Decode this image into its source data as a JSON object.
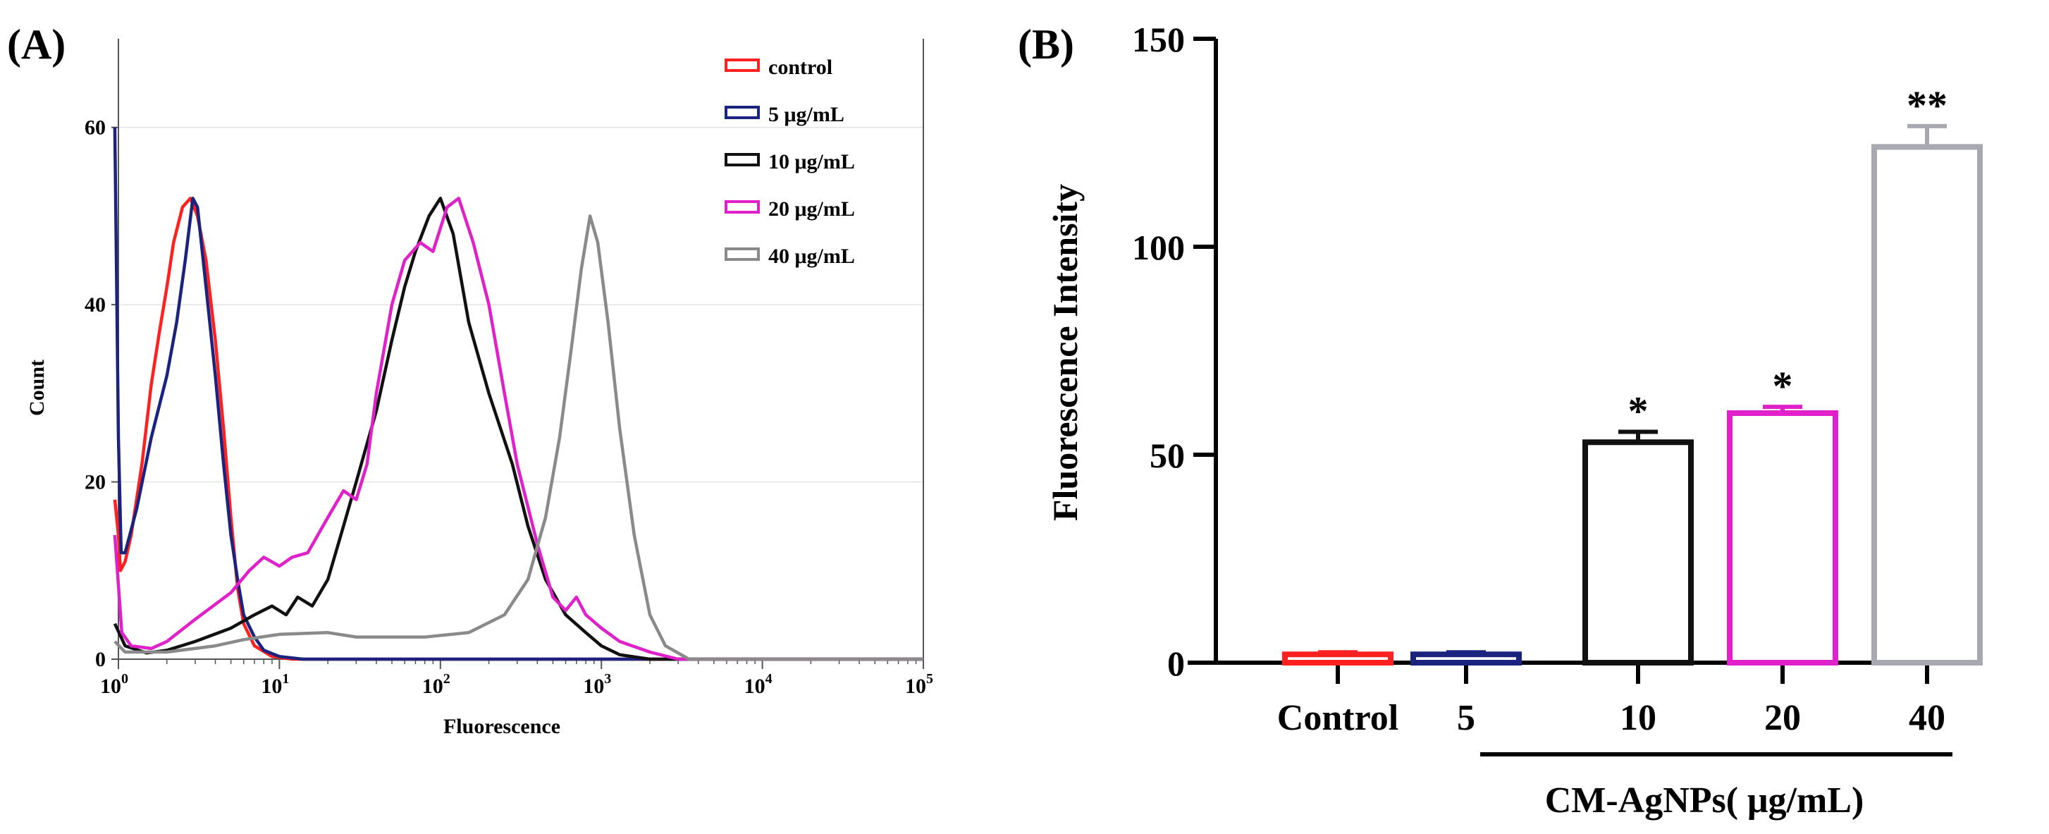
{
  "panels": {
    "a_label": "(A)",
    "b_label": "(B)"
  },
  "chart_data": [
    {
      "type": "line",
      "panel": "(A)",
      "title": "",
      "xlabel": "Fluorescence",
      "ylabel": "Count",
      "xscale": "log",
      "xlim": [
        1,
        100000
      ],
      "ylim": [
        0,
        70
      ],
      "x_ticks": [
        1,
        10,
        100,
        1000,
        10000,
        100000
      ],
      "y_ticks": [
        "0",
        "20",
        "40",
        "60"
      ],
      "y_tick_values": [
        0,
        20,
        40,
        60
      ],
      "legend_position": "top-right",
      "series": [
        {
          "name": "control",
          "color": "#ff2020",
          "points": [
            [
              0.95,
              18
            ],
            [
              1.0,
              14
            ],
            [
              1.03,
              10
            ],
            [
              1.1,
              11
            ],
            [
              1.2,
              14
            ],
            [
              1.4,
              22
            ],
            [
              1.6,
              31
            ],
            [
              1.8,
              37
            ],
            [
              2.0,
              42
            ],
            [
              2.2,
              47
            ],
            [
              2.5,
              51
            ],
            [
              2.8,
              52
            ],
            [
              3.1,
              50
            ],
            [
              3.5,
              45
            ],
            [
              4.0,
              36
            ],
            [
              4.5,
              26
            ],
            [
              5.0,
              16
            ],
            [
              5.5,
              8
            ],
            [
              6.0,
              4
            ],
            [
              7.0,
              1.5
            ],
            [
              9.0,
              0.3
            ],
            [
              12,
              0
            ],
            [
              100000,
              0
            ]
          ]
        },
        {
          "name": "5 μg/mL",
          "color": "#1a237e",
          "points": [
            [
              0.95,
              60
            ],
            [
              1.0,
              25
            ],
            [
              1.04,
              12
            ],
            [
              1.1,
              12
            ],
            [
              1.3,
              17
            ],
            [
              1.6,
              25
            ],
            [
              2.0,
              32
            ],
            [
              2.3,
              38
            ],
            [
              2.6,
              45
            ],
            [
              2.9,
              52
            ],
            [
              3.1,
              51
            ],
            [
              3.5,
              42
            ],
            [
              4.0,
              32
            ],
            [
              4.5,
              22
            ],
            [
              5.0,
              14
            ],
            [
              5.5,
              9
            ],
            [
              6.0,
              5
            ],
            [
              7.0,
              2.5
            ],
            [
              8.0,
              1
            ],
            [
              10,
              0.3
            ],
            [
              14,
              0
            ],
            [
              100000,
              0
            ]
          ]
        },
        {
          "name": "10  μg/mL",
          "color": "#111111",
          "points": [
            [
              0.95,
              4
            ],
            [
              1.1,
              1.5
            ],
            [
              1.5,
              0.7
            ],
            [
              2.0,
              1
            ],
            [
              3.0,
              2
            ],
            [
              5.0,
              3.5
            ],
            [
              7.0,
              5
            ],
            [
              9.0,
              6
            ],
            [
              11,
              5
            ],
            [
              13,
              7
            ],
            [
              16,
              6
            ],
            [
              20,
              9
            ],
            [
              25,
              15
            ],
            [
              30,
              20
            ],
            [
              40,
              28
            ],
            [
              50,
              36
            ],
            [
              60,
              42
            ],
            [
              70,
              46
            ],
            [
              85,
              50
            ],
            [
              100,
              52
            ],
            [
              120,
              48
            ],
            [
              150,
              38
            ],
            [
              200,
              30
            ],
            [
              280,
              22
            ],
            [
              350,
              15
            ],
            [
              450,
              9
            ],
            [
              600,
              5
            ],
            [
              800,
              3
            ],
            [
              1000,
              1.5
            ],
            [
              1300,
              0.5
            ],
            [
              2000,
              0
            ],
            [
              100000,
              0
            ]
          ]
        },
        {
          "name": "20 μg/mL",
          "color": "#e020c8",
          "points": [
            [
              0.95,
              14
            ],
            [
              1.05,
              3
            ],
            [
              1.2,
              1.5
            ],
            [
              1.6,
              1.2
            ],
            [
              2.0,
              2
            ],
            [
              3.0,
              4.5
            ],
            [
              5.0,
              7.5
            ],
            [
              6.5,
              10
            ],
            [
              8.0,
              11.5
            ],
            [
              10,
              10.5
            ],
            [
              12,
              11.5
            ],
            [
              15,
              12
            ],
            [
              20,
              16
            ],
            [
              25,
              19
            ],
            [
              30,
              18
            ],
            [
              35,
              22
            ],
            [
              40,
              30
            ],
            [
              50,
              40
            ],
            [
              60,
              45
            ],
            [
              75,
              47
            ],
            [
              90,
              46
            ],
            [
              110,
              51
            ],
            [
              130,
              52
            ],
            [
              160,
              47
            ],
            [
              200,
              40
            ],
            [
              250,
              30
            ],
            [
              300,
              22
            ],
            [
              400,
              13
            ],
            [
              500,
              7
            ],
            [
              600,
              5.5
            ],
            [
              700,
              7
            ],
            [
              800,
              5
            ],
            [
              1000,
              3.5
            ],
            [
              1300,
              2
            ],
            [
              2000,
              0.8
            ],
            [
              3000,
              0
            ],
            [
              100000,
              0
            ]
          ]
        },
        {
          "name": "40 μg/mL",
          "color": "#8a8a8a",
          "points": [
            [
              0.95,
              2
            ],
            [
              1.1,
              0.8
            ],
            [
              2.0,
              0.8
            ],
            [
              4.0,
              1.5
            ],
            [
              6.0,
              2.2
            ],
            [
              10,
              2.8
            ],
            [
              20,
              3
            ],
            [
              30,
              2.5
            ],
            [
              50,
              2.5
            ],
            [
              80,
              2.5
            ],
            [
              150,
              3
            ],
            [
              250,
              5
            ],
            [
              350,
              9
            ],
            [
              450,
              16
            ],
            [
              550,
              25
            ],
            [
              650,
              35
            ],
            [
              750,
              44
            ],
            [
              850,
              50
            ],
            [
              950,
              47
            ],
            [
              1100,
              38
            ],
            [
              1300,
              26
            ],
            [
              1600,
              14
            ],
            [
              2000,
              5
            ],
            [
              2500,
              1.5
            ],
            [
              3500,
              0
            ],
            [
              100000,
              0
            ]
          ]
        }
      ]
    },
    {
      "type": "bar",
      "panel": "(B)",
      "title": "",
      "xlabel": "CM-AgNPs( μg/mL)",
      "ylabel": "Fluorescence Intensity",
      "ylim": [
        0,
        150
      ],
      "y_ticks": [
        "0",
        "50",
        "100",
        "150"
      ],
      "y_tick_values": [
        0,
        50,
        100,
        150
      ],
      "categories": [
        "Control",
        "5",
        "10",
        "20",
        "40"
      ],
      "values": [
        2,
        2,
        53,
        60,
        124
      ],
      "errors": [
        0.5,
        0.5,
        2.5,
        1.5,
        5
      ],
      "significance": [
        "",
        "",
        "*",
        "*",
        "**"
      ],
      "colors": [
        "#ff2020",
        "#1a237e",
        "#111111",
        "#e020c8",
        "#a8a8b0"
      ]
    }
  ]
}
